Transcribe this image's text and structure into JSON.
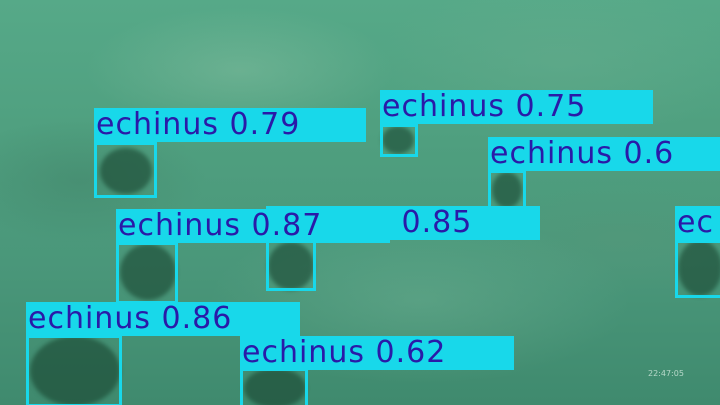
{
  "image": {
    "description_class": "echinus",
    "box_color": "#18d8ea",
    "label_text_color": "#2a1aa8"
  },
  "detections": [
    {
      "label": "echinus 0.79"
    },
    {
      "label": "echinus 0.75"
    },
    {
      "label": "echinus 0.6"
    },
    {
      "label": "echinus 0.85"
    },
    {
      "label": "echinus 0.87"
    },
    {
      "label": "ec"
    },
    {
      "label": "echinus 0.86"
    },
    {
      "label": "echinus 0.62"
    }
  ],
  "watermark": "22:47:05"
}
